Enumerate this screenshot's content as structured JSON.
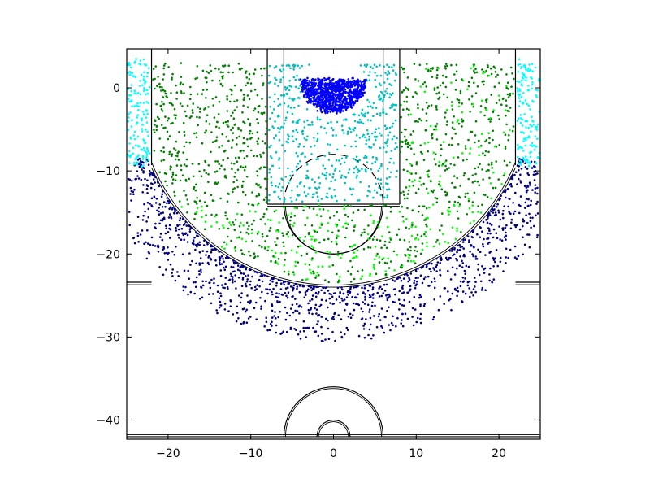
{
  "chart_data": {
    "type": "scatter",
    "title": "",
    "xlabel": "",
    "ylabel": "",
    "xlim": [
      -25,
      25
    ],
    "ylim": [
      -42.3,
      4.7
    ],
    "grid": false,
    "legend": "none",
    "x_ticks": [
      -20,
      -10,
      0,
      10,
      20
    ],
    "x_tick_labels": [
      "−20",
      "−10",
      "0",
      "10",
      "20"
    ],
    "y_ticks": [
      0,
      -10,
      -20,
      -30,
      -40
    ],
    "y_tick_labels": [
      "0",
      "−10",
      "−20",
      "−30",
      "−40"
    ],
    "zones": [
      {
        "zone": "restricted-area",
        "color": "#0000ff",
        "approx_points": 900,
        "region": "semicircle radius 4 under the basket, y from -4 to 1.5"
      },
      {
        "zone": "paint",
        "color": "#00bfbf",
        "approx_points": 700,
        "region": "x -8 to 8, y from 3 to -14, outside restricted area"
      },
      {
        "zone": "mid-range-left",
        "color": "#008000",
        "approx_points": 700,
        "region": "left side inside 3-point line"
      },
      {
        "zone": "mid-range-right",
        "color": "#00ff00",
        "approx_points": 700,
        "region": "right/front inside 3-point line"
      },
      {
        "zone": "corner-three",
        "color": "#00ffff",
        "approx_points": 300,
        "region": "x beyond ±22, y from 3 to -9"
      },
      {
        "zone": "above-break-three",
        "color": "#000080",
        "approx_points": 1500,
        "region": "outside 3-point arc, distance 23.75 to 30"
      }
    ],
    "court": {
      "three_point_radius": 23.75,
      "corner_three_x": 22,
      "paint_outer_halfwidth": 8,
      "paint_inner_halfwidth": 6,
      "free_throw_line_y": -14,
      "free_throw_circle_radius": 6,
      "half_court_y": -42,
      "center_circle_radii": [
        6,
        2
      ]
    }
  }
}
